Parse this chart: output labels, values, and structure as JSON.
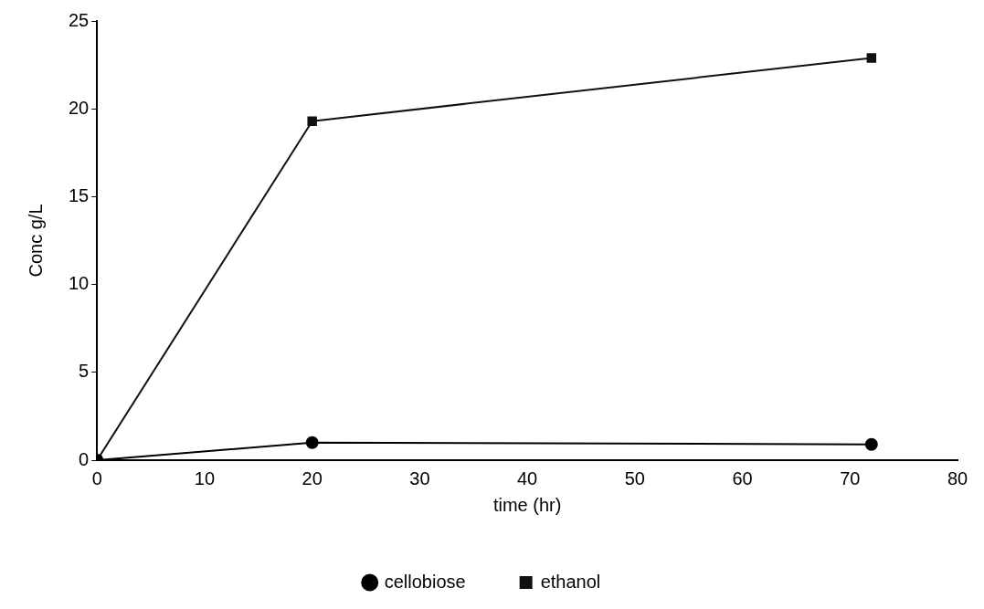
{
  "chart_data": {
    "type": "line",
    "xlabel": "time (hr)",
    "ylabel": "Conc g/L",
    "x": [
      0,
      20,
      72
    ],
    "series": [
      {
        "name": "cellobiose",
        "color": "#000000",
        "marker": "circle",
        "values": [
          0,
          1.0,
          0.9
        ]
      },
      {
        "name": "ethanol",
        "color": "#111111",
        "marker": "square",
        "values": [
          0,
          19.3,
          22.9
        ]
      }
    ],
    "xlim": [
      0,
      80
    ],
    "xticks": [
      0,
      10,
      20,
      30,
      40,
      50,
      60,
      70,
      80
    ],
    "ylim": [
      0,
      25
    ],
    "yticks": [
      0,
      5,
      10,
      15,
      20,
      25
    ],
    "grid": false,
    "legend": "bottom",
    "line_style": "solid"
  }
}
